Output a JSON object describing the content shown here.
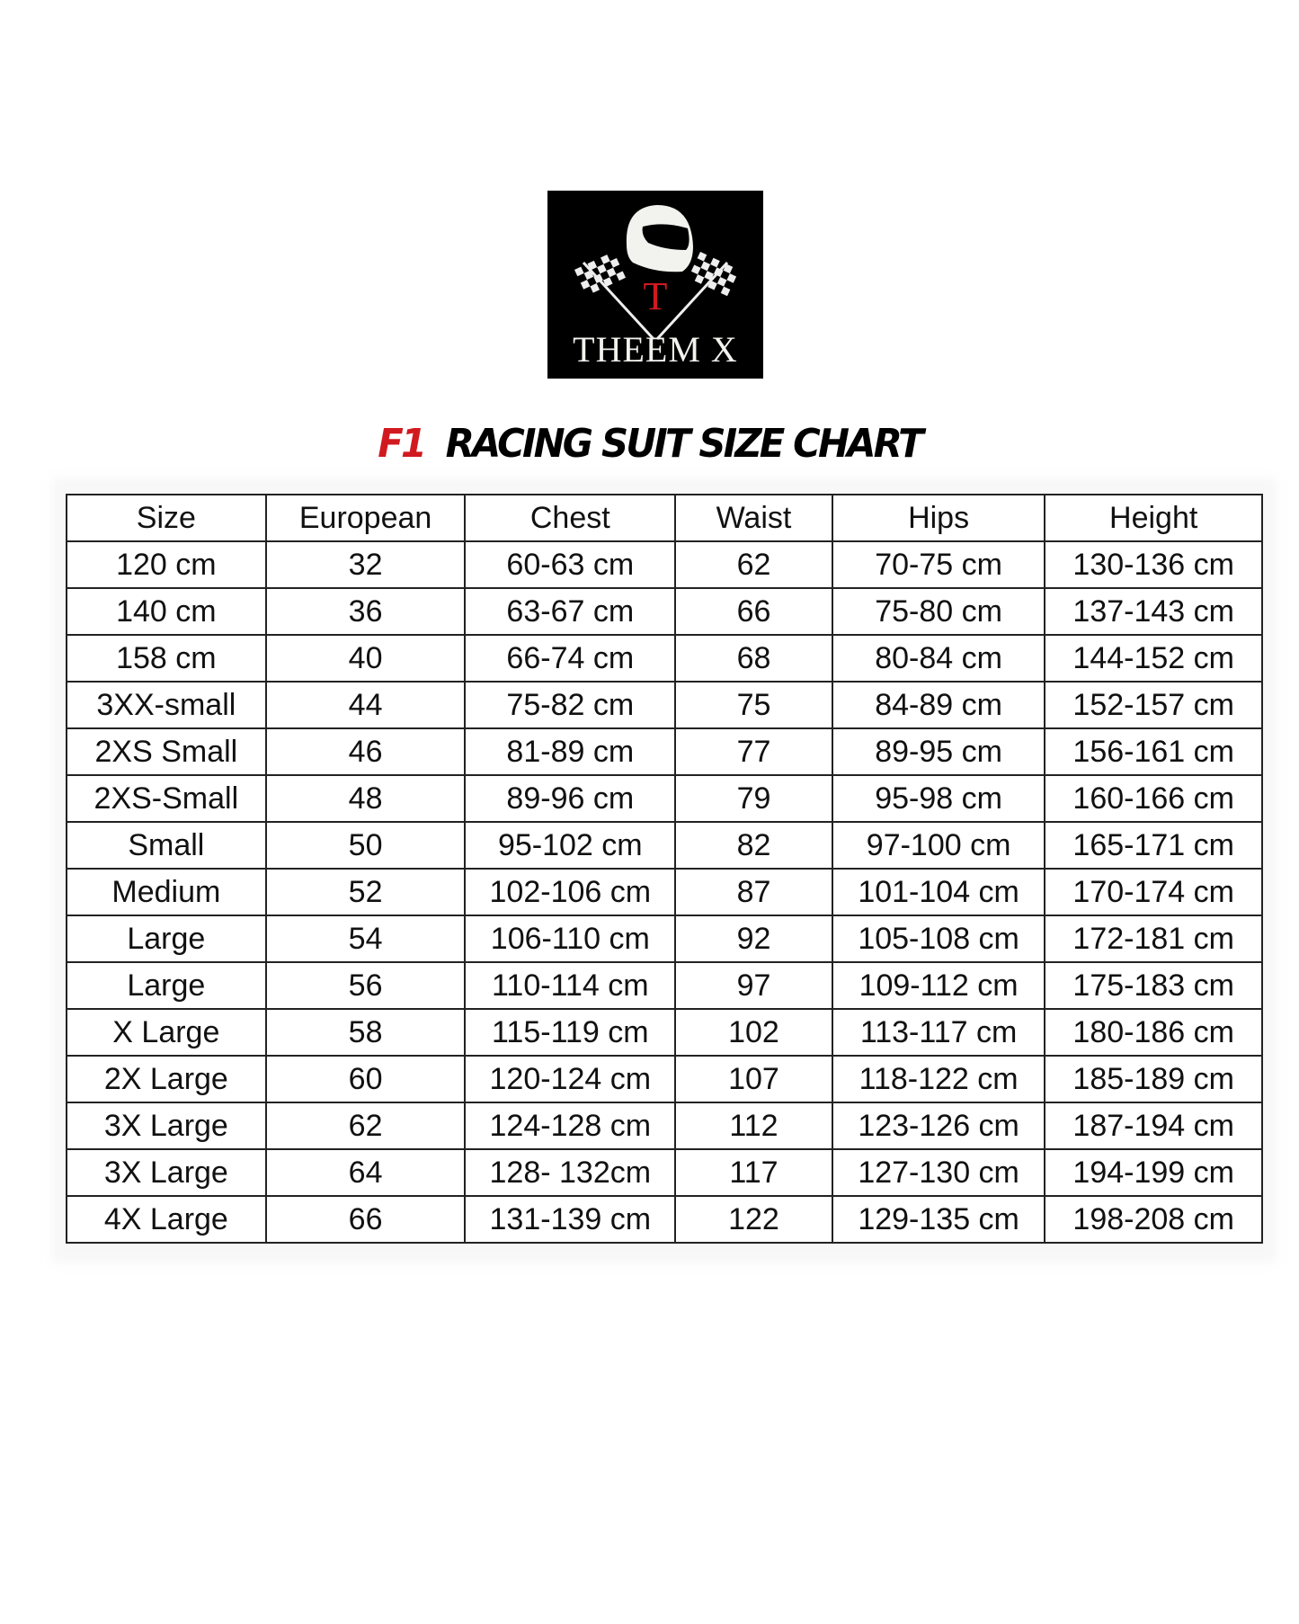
{
  "logo": {
    "brand_text": "THEEM X",
    "initial": "T"
  },
  "title": {
    "prefix": "F1",
    "text": "RACING SUIT SIZE CHART"
  },
  "colors": {
    "accent_red": "#d11a1f",
    "logo_bg": "#000000"
  },
  "table": {
    "headers": [
      "Size",
      "European",
      "Chest",
      "Waist",
      "Hips",
      "Height"
    ],
    "rows": [
      [
        "120 cm",
        "32",
        "60-63 cm",
        "62",
        "70-75 cm",
        "130-136 cm"
      ],
      [
        "140 cm",
        "36",
        "63-67 cm",
        "66",
        "75-80 cm",
        "137-143 cm"
      ],
      [
        "158 cm",
        "40",
        "66-74 cm",
        "68",
        "80-84 cm",
        "144-152 cm"
      ],
      [
        "3XX-small",
        "44",
        "75-82 cm",
        "75",
        "84-89 cm",
        "152-157 cm"
      ],
      [
        "2XS Small",
        "46",
        "81-89 cm",
        "77",
        "89-95 cm",
        "156-161 cm"
      ],
      [
        "2XS-Small",
        "48",
        "89-96 cm",
        "79",
        "95-98 cm",
        "160-166 cm"
      ],
      [
        "Small",
        "50",
        "95-102 cm",
        "82",
        "97-100 cm",
        "165-171 cm"
      ],
      [
        "Medium",
        "52",
        "102-106 cm",
        "87",
        "101-104 cm",
        "170-174 cm"
      ],
      [
        "Large",
        "54",
        "106-110 cm",
        "92",
        "105-108 cm",
        "172-181 cm"
      ],
      [
        "Large",
        "56",
        "110-114 cm",
        "97",
        "109-112 cm",
        "175-183 cm"
      ],
      [
        "X Large",
        "58",
        "115-119 cm",
        "102",
        "113-117 cm",
        "180-186 cm"
      ],
      [
        "2X Large",
        "60",
        "120-124 cm",
        "107",
        "118-122 cm",
        "185-189 cm"
      ],
      [
        "3X Large",
        "62",
        "124-128 cm",
        "112",
        "123-126 cm",
        "187-194 cm"
      ],
      [
        "3X Large",
        "64",
        "128- 132cm",
        "117",
        "127-130 cm",
        "194-199 cm"
      ],
      [
        "4X Large",
        "66",
        "131-139 cm",
        "122",
        "129-135 cm",
        "198-208 cm"
      ]
    ]
  }
}
